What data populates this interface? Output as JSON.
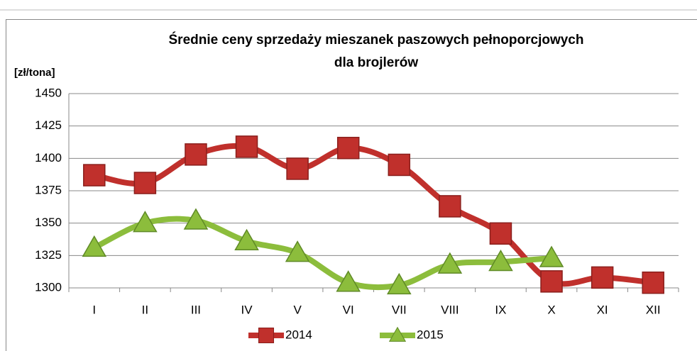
{
  "chart_data": {
    "type": "line",
    "title": [
      "Średnie ceny sprzedaży mieszanek paszowych pełnoporcjowych",
      "dla brojlerów"
    ],
    "y_label": "[zł/tona]",
    "categories": [
      "I",
      "II",
      "III",
      "IV",
      "V",
      "VI",
      "VII",
      "VIII",
      "IX",
      "X",
      "XI",
      "XII"
    ],
    "series": [
      {
        "name": "2014",
        "color": "#c0302c",
        "marker": "square",
        "values": [
          1387,
          1381,
          1403,
          1409,
          1392,
          1408,
          1395,
          1363,
          1342,
          1305,
          1308,
          1304
        ]
      },
      {
        "name": "2015",
        "color": "#8cbd3c",
        "marker": "triangle",
        "values": [
          1331,
          1350,
          1352,
          1336,
          1327,
          1304,
          1302,
          1318,
          1320,
          1323,
          null,
          null
        ]
      }
    ],
    "ylim": [
      1300,
      1450
    ],
    "yticks": [
      1300,
      1325,
      1350,
      1375,
      1400,
      1425,
      1450
    ],
    "grid": true,
    "legend": "bottom"
  }
}
